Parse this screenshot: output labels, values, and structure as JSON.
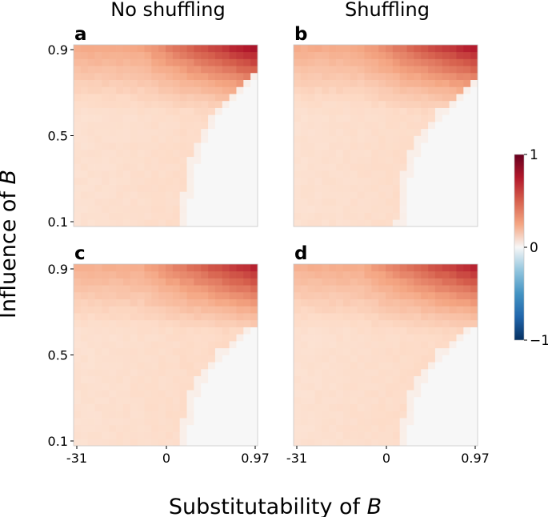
{
  "chart_data": {
    "type": "heatmap",
    "column_titles": [
      "No shuffling",
      "Shuffling"
    ],
    "xlabel_prefix": "Substitutability of ",
    "xlabel_var": "B",
    "ylabel_prefix": "Influence of ",
    "ylabel_var": "B",
    "grid_size": 26,
    "xticks": [
      {
        "value": -31,
        "label": "-31"
      },
      {
        "value": 0,
        "label": "0"
      },
      {
        "value": 0.97,
        "label": "0.97"
      }
    ],
    "yticks": [
      {
        "value": 0.1,
        "label": "0.1"
      },
      {
        "value": 0.5,
        "label": "0.5"
      },
      {
        "value": 0.9,
        "label": "0.9"
      }
    ],
    "xrange": [
      -31,
      0.97
    ],
    "yrange": [
      0.1,
      0.9
    ],
    "colorbar": {
      "cmap": "RdBu_r",
      "vmin": -1,
      "vmax": 1,
      "ticks": [
        {
          "value": 1,
          "label": "1"
        },
        {
          "value": 0,
          "label": "0"
        },
        {
          "value": -1,
          "label": "−1"
        }
      ]
    },
    "panels": [
      {
        "label": "a",
        "row": 0,
        "col": 0,
        "boundary_base": 14.5,
        "boundary_slope": 2.0,
        "boundary_curv": 14,
        "top_strength": 1.0
      },
      {
        "label": "b",
        "row": 0,
        "col": 1,
        "boundary_base": 14.0,
        "boundary_slope": 2.0,
        "boundary_curv": 18,
        "top_strength": 0.95
      },
      {
        "label": "c",
        "row": 1,
        "col": 0,
        "boundary_base": 14.5,
        "boundary_slope": 3.0,
        "boundary_curv": 28,
        "top_strength": 0.9
      },
      {
        "label": "d",
        "row": 1,
        "col": 1,
        "boundary_base": 14.5,
        "boundary_slope": 3.0,
        "boundary_curv": 28,
        "top_strength": 0.9
      }
    ]
  }
}
